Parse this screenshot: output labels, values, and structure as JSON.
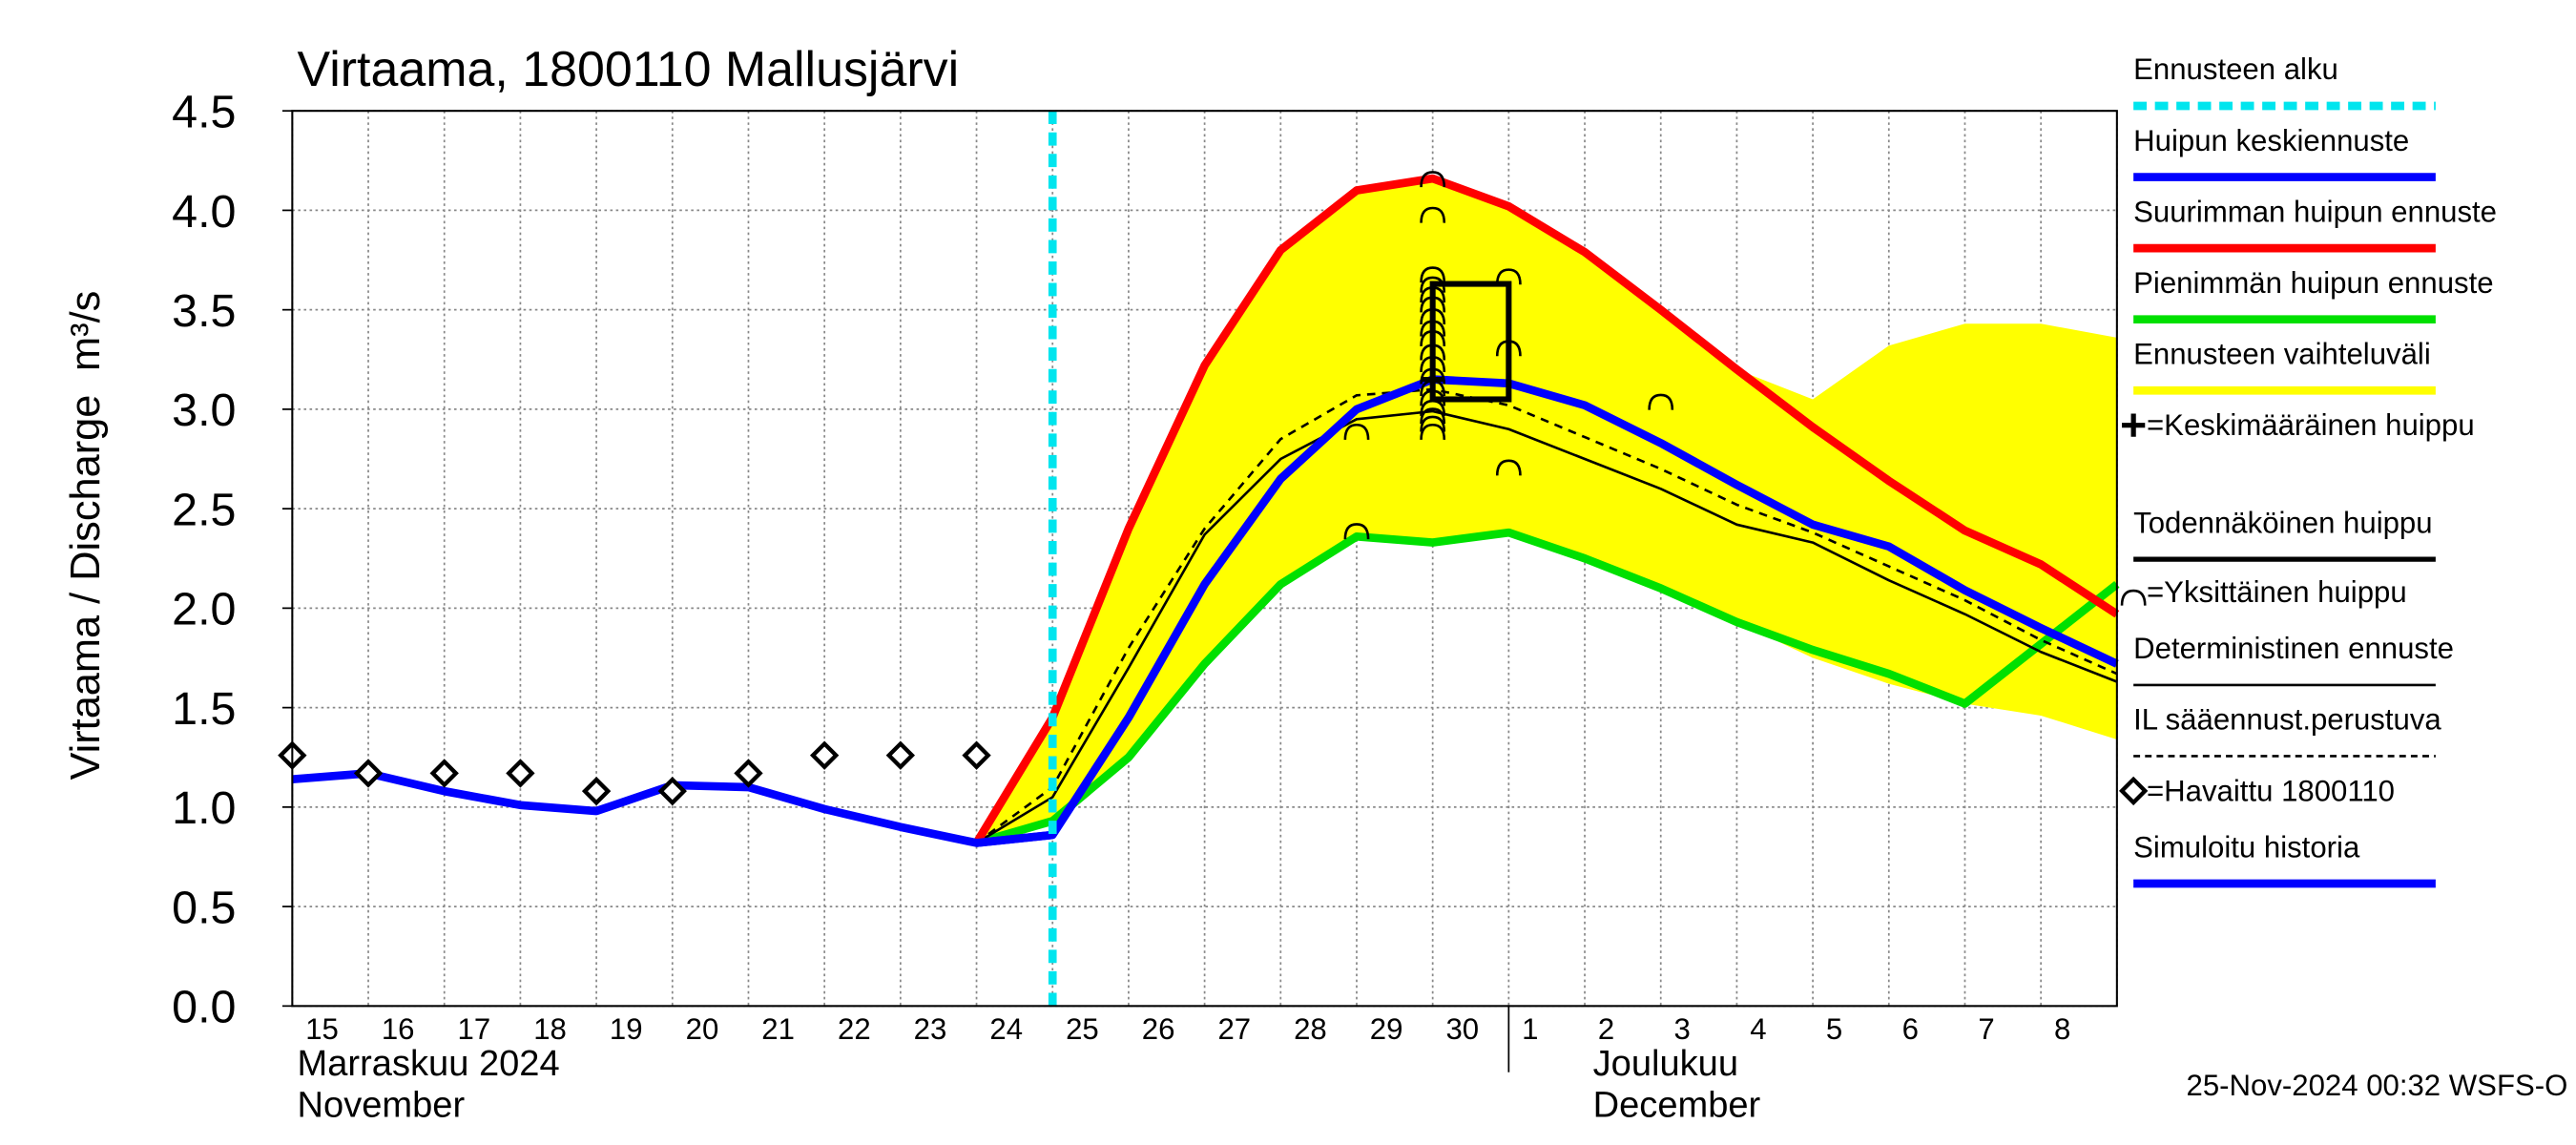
{
  "chart_data": {
    "type": "line",
    "title": "Virtaama, 1800110 Mallusjärvi",
    "y_label": "Virtaama / Discharge",
    "y_unit": "m³/s",
    "categories": [
      "15",
      "16",
      "17",
      "18",
      "19",
      "20",
      "21",
      "22",
      "23",
      "24",
      "25",
      "26",
      "27",
      "28",
      "29",
      "30",
      "1",
      "2",
      "3",
      "4",
      "5",
      "6",
      "7",
      "8",
      null
    ],
    "months": [
      {
        "fi": "Marraskuu 2024",
        "en": "November",
        "start": "15"
      },
      {
        "fi": "Joulukuu",
        "en": "December",
        "start": "1"
      }
    ],
    "ylim": [
      0,
      4.5
    ],
    "yticks": [
      {
        "value": 0,
        "label": "0.0"
      },
      0.5,
      {
        "value": 1,
        "label": "1.0"
      },
      1.5,
      {
        "value": 2,
        "label": "2.0"
      },
      2.5,
      {
        "value": 3,
        "label": "3.0"
      },
      3.5,
      {
        "value": 4,
        "label": "4.0"
      },
      4.5
    ],
    "grid": true,
    "forecast_start": {
      "name": "Ennusteen alku",
      "x": "25",
      "color": "#00e5ee"
    },
    "band": {
      "name": "Ennusteen vaihteluväli",
      "color": "#ffff00",
      "upper": [
        null,
        null,
        null,
        null,
        null,
        null,
        null,
        null,
        null,
        0.82,
        1.45,
        2.4,
        3.22,
        3.8,
        4.1,
        4.16,
        4.02,
        3.79,
        3.5,
        3.2,
        3.05,
        3.32,
        3.43,
        3.43,
        3.36
      ],
      "lower": [
        null,
        null,
        null,
        null,
        null,
        null,
        null,
        null,
        null,
        0.82,
        0.93,
        1.25,
        1.72,
        2.12,
        2.36,
        2.33,
        2.38,
        2.25,
        2.1,
        1.93,
        1.75,
        1.62,
        1.52,
        1.46,
        1.34
      ]
    },
    "series": [
      {
        "name": "Huipun keskiennuste",
        "color": "#0000ff",
        "width": 5,
        "values": [
          null,
          null,
          null,
          null,
          null,
          null,
          null,
          null,
          null,
          0.82,
          0.86,
          1.45,
          2.12,
          2.65,
          3.0,
          3.15,
          3.13,
          3.02,
          2.83,
          2.62,
          2.42,
          2.31,
          2.09,
          1.9,
          1.72
        ]
      },
      {
        "name": "Suurimman huipun ennuste",
        "color": "#ff0000",
        "width": 5,
        "values": [
          null,
          null,
          null,
          null,
          null,
          null,
          null,
          null,
          null,
          0.82,
          1.45,
          2.4,
          3.22,
          3.8,
          4.1,
          4.16,
          4.02,
          3.79,
          3.5,
          3.2,
          2.91,
          2.64,
          2.39,
          2.22,
          1.97
        ]
      },
      {
        "name": "Pienimmän huipun ennuste",
        "color": "#00e000",
        "width": 5,
        "values": [
          null,
          null,
          null,
          null,
          null,
          null,
          null,
          null,
          null,
          0.82,
          0.93,
          1.25,
          1.72,
          2.12,
          2.36,
          2.33,
          2.38,
          2.25,
          2.1,
          1.93,
          1.79,
          1.67,
          1.52,
          1.82,
          2.12
        ]
      },
      {
        "name": "Deterministinen ennuste",
        "color": "#000000",
        "width": 1.5,
        "values": [
          null,
          null,
          null,
          null,
          null,
          null,
          null,
          null,
          null,
          0.82,
          1.05,
          1.7,
          2.37,
          2.75,
          2.95,
          2.99,
          2.9,
          2.75,
          2.6,
          2.42,
          2.33,
          2.14,
          1.97,
          1.78,
          1.63
        ]
      },
      {
        "name": "IL sääennust.perustuva",
        "color": "#000000",
        "width": 1.5,
        "dash": true,
        "values": [
          null,
          null,
          null,
          null,
          null,
          null,
          null,
          null,
          null,
          0.82,
          1.1,
          1.8,
          2.4,
          2.85,
          3.07,
          3.1,
          3.02,
          2.86,
          2.7,
          2.52,
          2.38,
          2.21,
          2.04,
          1.84,
          1.67
        ]
      },
      {
        "name": "Simuloitu historia",
        "color": "#0000ff",
        "width": 5,
        "values": [
          1.14,
          1.17,
          1.08,
          1.01,
          0.98,
          1.11,
          1.1,
          0.99,
          0.9,
          0.82,
          0.86,
          null,
          null,
          null,
          null,
          null,
          null,
          null,
          null,
          null,
          null,
          null,
          null,
          null,
          null
        ]
      }
    ],
    "observed": {
      "name": "=Havaittu 1800110",
      "values": [
        1.26,
        1.17,
        1.17,
        1.17,
        1.08,
        1.08,
        1.17,
        1.26,
        1.26,
        1.26,
        null,
        null,
        null,
        null,
        null,
        null,
        null,
        null,
        null,
        null,
        null,
        null,
        null,
        null,
        null
      ]
    },
    "mean_peak": {
      "name": "=Keskimääräinen huippu",
      "x": "30",
      "y": 3.15
    },
    "probable_peak": {
      "name": "Todennäköinen huippu",
      "x": [
        "30",
        "1"
      ],
      "y": [
        3.05,
        3.63
      ]
    },
    "individual_peaks": {
      "name": "=Yksittäinen huippu",
      "x": [
        "29",
        "29",
        "30",
        "30",
        "30",
        "30",
        "30",
        "30",
        "30",
        "30",
        "30",
        "30",
        "30",
        "30",
        "30",
        "30",
        "30",
        "30",
        "30",
        "30",
        "1",
        "1",
        "1",
        "3"
      ],
      "y": [
        2.88,
        2.38,
        4.15,
        3.97,
        3.67,
        3.62,
        3.57,
        3.52,
        3.46,
        3.4,
        3.35,
        3.28,
        3.22,
        3.16,
        3.1,
        3.05,
        3.0,
        2.96,
        2.92,
        2.88,
        3.66,
        3.3,
        2.7,
        3.03
      ]
    },
    "footer": "25-Nov-2024 00:32 WSFS-O"
  }
}
